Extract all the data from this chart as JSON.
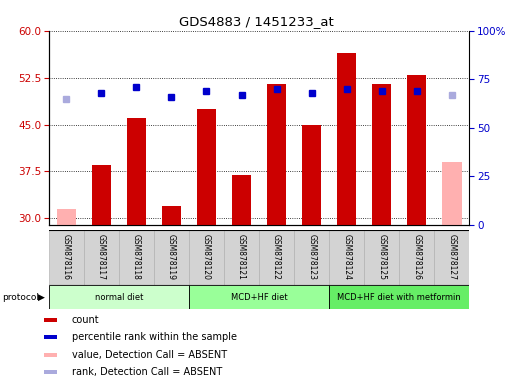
{
  "title": "GDS4883 / 1451233_at",
  "samples": [
    "GSM878116",
    "GSM878117",
    "GSM878118",
    "GSM878119",
    "GSM878120",
    "GSM878121",
    "GSM878122",
    "GSM878123",
    "GSM878124",
    "GSM878125",
    "GSM878126",
    "GSM878127"
  ],
  "count_values": [
    31.5,
    38.5,
    46.0,
    32.0,
    47.5,
    37.0,
    51.5,
    45.0,
    56.5,
    51.5,
    53.0,
    39.0
  ],
  "count_absent": [
    true,
    false,
    false,
    false,
    false,
    false,
    false,
    false,
    false,
    false,
    false,
    true
  ],
  "percentile_values": [
    65,
    68,
    71,
    66,
    69,
    67,
    70,
    68,
    70,
    69,
    69,
    67
  ],
  "percentile_absent": [
    true,
    false,
    false,
    false,
    false,
    false,
    false,
    false,
    false,
    false,
    false,
    true
  ],
  "ylim_left": [
    29,
    60
  ],
  "ylim_right": [
    0,
    100
  ],
  "yticks_left": [
    30,
    37.5,
    45,
    52.5,
    60
  ],
  "yticks_right": [
    0,
    25,
    50,
    75,
    100
  ],
  "color_count": "#cc0000",
  "color_count_absent": "#ffb0b0",
  "color_percentile": "#0000cc",
  "color_percentile_absent": "#aaaadd",
  "bar_width": 0.55,
  "protocols": [
    {
      "label": "normal diet",
      "start": 0,
      "end": 4,
      "color": "#ccffcc"
    },
    {
      "label": "MCD+HF diet",
      "start": 4,
      "end": 8,
      "color": "#99ff99"
    },
    {
      "label": "MCD+HF diet with metformin",
      "start": 8,
      "end": 12,
      "color": "#66ee66"
    }
  ],
  "legend_items": [
    {
      "label": "count",
      "color": "#cc0000"
    },
    {
      "label": "percentile rank within the sample",
      "color": "#0000cc"
    },
    {
      "label": "value, Detection Call = ABSENT",
      "color": "#ffb0b0"
    },
    {
      "label": "rank, Detection Call = ABSENT",
      "color": "#aaaadd"
    }
  ],
  "fig_width": 5.13,
  "fig_height": 3.84,
  "dpi": 100
}
